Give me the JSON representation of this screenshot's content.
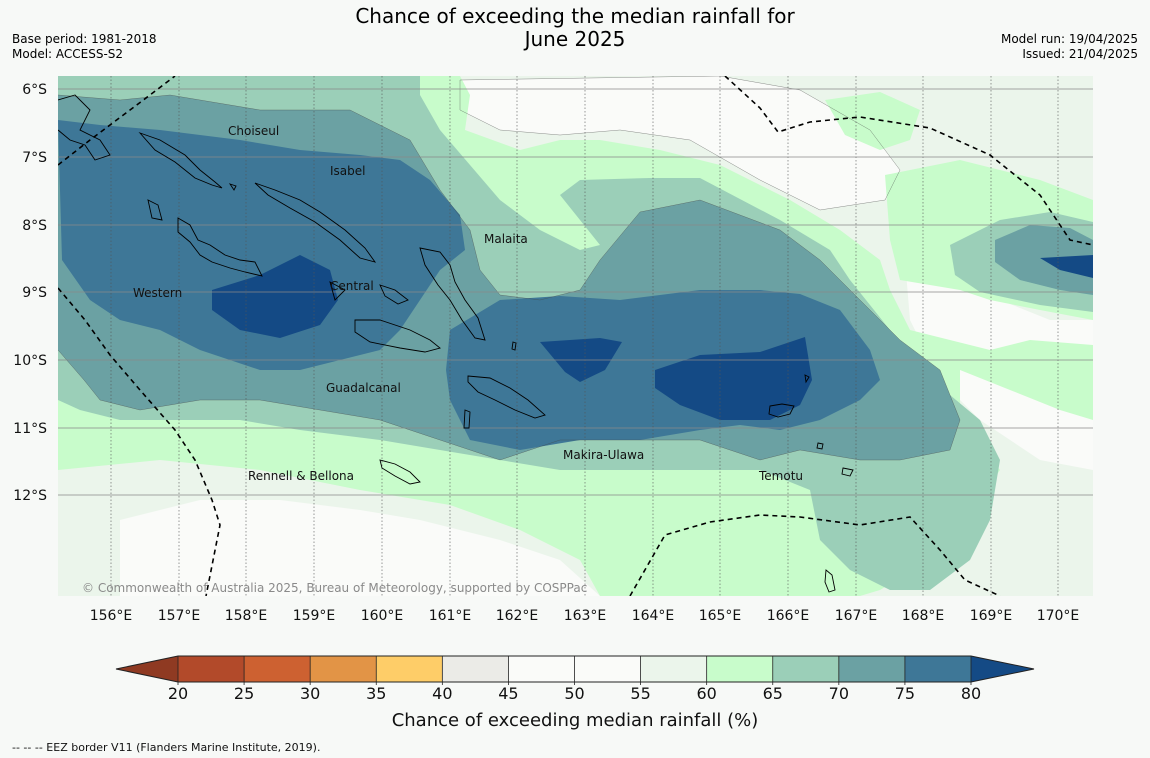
{
  "header": {
    "title_line1": "Chance of exceeding the median rainfall for",
    "title_line2": "June 2025",
    "base_period": "Base period: 1981-2018",
    "model": "Model: ACCESS-S2",
    "model_run": "Model run: 19/04/2025",
    "issued": "Issued: 21/04/2025"
  },
  "map": {
    "lat_labels": [
      "6°S",
      "7°S",
      "8°S",
      "9°S",
      "10°S",
      "11°S",
      "12°S"
    ],
    "lon_labels": [
      "156°E",
      "157°E",
      "158°E",
      "159°E",
      "160°E",
      "161°E",
      "162°E",
      "163°E",
      "164°E",
      "165°E",
      "166°E",
      "167°E",
      "168°E",
      "169°E",
      "170°E"
    ],
    "province_labels": [
      "Choiseul",
      "Isabel",
      "Malaita",
      "Western",
      "Central",
      "Guadalcanal",
      "Makira-Ulawa",
      "Rennell & Bellona",
      "Temotu"
    ],
    "copyright": "© Commonwealth of Australia 2025, Bureau of Meteorology, supported by COSPPac"
  },
  "colorbar": {
    "ticks": [
      "20",
      "25",
      "30",
      "35",
      "40",
      "45",
      "50",
      "55",
      "60",
      "65",
      "70",
      "75",
      "80"
    ],
    "colors": [
      "#b24a2a",
      "#cd6131",
      "#e29446",
      "#fecd68",
      "#ebebe7",
      "#fafbf9",
      "#fafbf9",
      "#ebf5eb",
      "#c8fccb",
      "#9bcfb8",
      "#6ba1a3",
      "#3e7797"
    ],
    "under_color": "#8f3a22",
    "over_color": "#144a85",
    "title": "Chance of exceeding median rainfall (%)"
  },
  "footer": {
    "eez_note": "--  --  -- EEZ border V11 (Flanders Marine Institute, 2019)."
  }
}
